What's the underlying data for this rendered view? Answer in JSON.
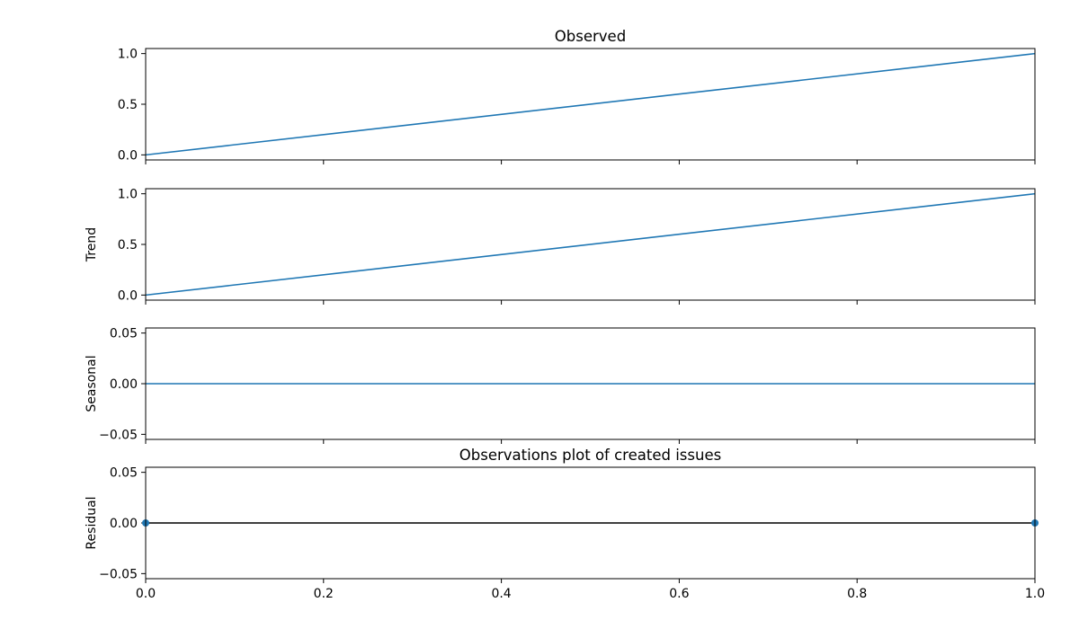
{
  "chart_data": {
    "type": "line",
    "figure_title": "",
    "x": [
      0.0,
      1.0
    ],
    "xlim": [
      0.0,
      1.0
    ],
    "xticks": [
      0.0,
      0.2,
      0.4,
      0.6,
      0.8,
      1.0
    ],
    "xtick_labels": [
      "0.0",
      "0.2",
      "0.4",
      "0.6",
      "0.8",
      "1.0"
    ],
    "line_color": "#1f77b4",
    "zero_line_color": "#000000",
    "grid": false,
    "panels": [
      {
        "key": "observed",
        "title": "Observed",
        "ylabel": "",
        "ylim": [
          -0.05,
          1.05
        ],
        "yticks": [
          0.0,
          0.5,
          1.0
        ],
        "ytick_labels": [
          "0.0",
          "0.5",
          "1.0"
        ],
        "series": [
          {
            "style": "line",
            "values": [
              0.0,
              1.0
            ]
          }
        ],
        "show_xtick_labels": false
      },
      {
        "key": "trend",
        "title": "",
        "ylabel": "Trend",
        "ylim": [
          -0.05,
          1.05
        ],
        "yticks": [
          0.0,
          0.5,
          1.0
        ],
        "ytick_labels": [
          "0.0",
          "0.5",
          "1.0"
        ],
        "series": [
          {
            "style": "line",
            "values": [
              0.0,
              1.0
            ]
          }
        ],
        "show_xtick_labels": false
      },
      {
        "key": "seasonal",
        "title": "",
        "ylabel": "Seasonal",
        "ylim": [
          -0.055,
          0.055
        ],
        "yticks": [
          -0.05,
          0.0,
          0.05
        ],
        "ytick_labels": [
          "−0.05",
          "0.00",
          "0.05"
        ],
        "series": [
          {
            "style": "line",
            "values": [
              0.0,
              0.0
            ]
          }
        ],
        "show_xtick_labels": false
      },
      {
        "key": "residual",
        "title": "Observations plot of created issues",
        "ylabel": "Residual",
        "ylim": [
          -0.055,
          0.055
        ],
        "yticks": [
          -0.05,
          0.0,
          0.05
        ],
        "ytick_labels": [
          "−0.05",
          "0.00",
          "0.05"
        ],
        "zero_line": true,
        "series": [
          {
            "style": "marker",
            "values": [
              0.0,
              0.0
            ]
          }
        ],
        "show_xtick_labels": true
      }
    ]
  }
}
